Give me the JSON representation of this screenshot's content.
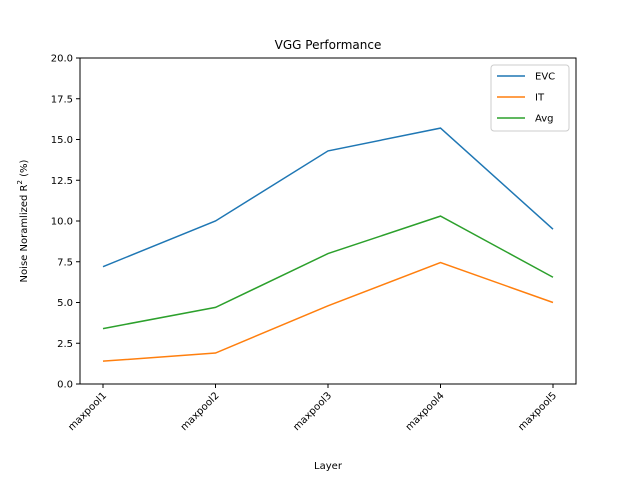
{
  "chart_data": {
    "type": "line",
    "title": "VGG Performance",
    "xlabel": "Layer",
    "ylabel": "Noise Noramlized R² (%)",
    "categories": [
      "maxpool1",
      "maxpool2",
      "maxpool3",
      "maxpool4",
      "maxpool5"
    ],
    "ylim": [
      0,
      20
    ],
    "yticks": [
      "0.0",
      "2.5",
      "5.0",
      "7.5",
      "10.0",
      "12.5",
      "15.0",
      "17.5",
      "20.0"
    ],
    "series": [
      {
        "name": "EVC",
        "color": "#1f77b4",
        "values": [
          7.2,
          10.0,
          14.3,
          15.7,
          9.5
        ]
      },
      {
        "name": "IT",
        "color": "#ff7f0e",
        "values": [
          1.4,
          1.9,
          4.8,
          7.45,
          5.0
        ]
      },
      {
        "name": "Avg",
        "color": "#2ca02c",
        "values": [
          3.4,
          4.7,
          8.0,
          10.3,
          6.55
        ]
      }
    ],
    "legend_position": "top-right",
    "grid": false
  }
}
